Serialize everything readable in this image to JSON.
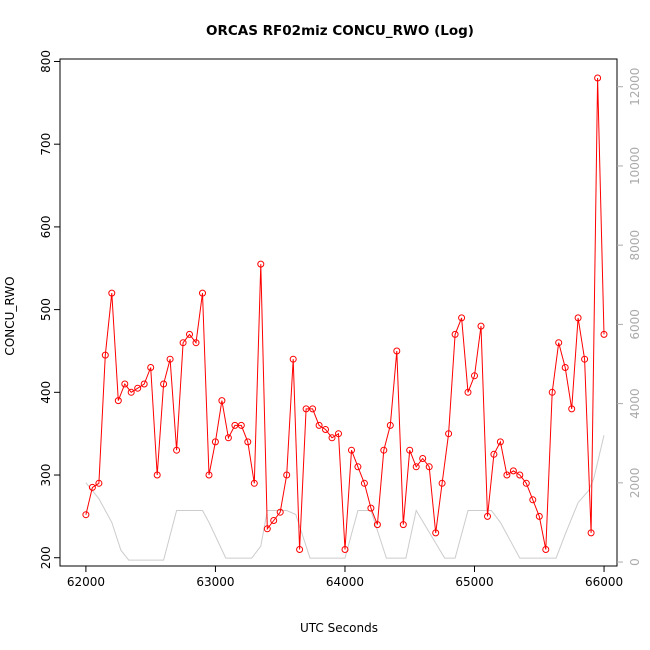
{
  "chart_data": {
    "type": "line",
    "title": "ORCAS RF02miz CONCU_RWO (Log)",
    "xlabel": "UTC Seconds",
    "ylabel": "CONCU_RWO",
    "xlim": [
      61800,
      66100
    ],
    "ylim": [
      190,
      803
    ],
    "y2lim": [
      -100,
      12700
    ],
    "xticks": [
      62000,
      63000,
      64000,
      65000,
      66000
    ],
    "yticks": [
      200,
      300,
      400,
      500,
      600,
      700,
      800
    ],
    "y2ticks": [
      0,
      2000,
      4000,
      6000,
      8000,
      10000,
      12000
    ],
    "grid": false,
    "series": [
      {
        "color": "#ff0000",
        "marker": "open-circle",
        "x": [
          62000,
          62050,
          62100,
          62150,
          62200,
          62250,
          62300,
          62350,
          62400,
          62450,
          62500,
          62550,
          62600,
          62650,
          62700,
          62750,
          62800,
          62850,
          62900,
          62950,
          63000,
          63050,
          63100,
          63150,
          63200,
          63250,
          63300,
          63350,
          63400,
          63450,
          63500,
          63550,
          63600,
          63650,
          63700,
          63750,
          63800,
          63850,
          63900,
          63950,
          64000,
          64050,
          64100,
          64150,
          64200,
          64250,
          64300,
          64350,
          64400,
          64450,
          64500,
          64550,
          64600,
          64650,
          64700,
          64750,
          64800,
          64850,
          64900,
          64950,
          65000,
          65050,
          65100,
          65150,
          65200,
          65250,
          65300,
          65350,
          65400,
          65450,
          65500,
          65550,
          65600,
          65650,
          65700,
          65750,
          65800,
          65850,
          65900,
          65950,
          66000
        ],
        "y": [
          252,
          285,
          290,
          445,
          520,
          390,
          410,
          400,
          405,
          410,
          430,
          300,
          410,
          440,
          330,
          460,
          470,
          460,
          520,
          300,
          340,
          390,
          345,
          360,
          360,
          340,
          290,
          555,
          235,
          245,
          255,
          300,
          440,
          210,
          380,
          380,
          360,
          355,
          345,
          350,
          210,
          330,
          310,
          290,
          260,
          240,
          330,
          360,
          450,
          240,
          330,
          310,
          320,
          310,
          230,
          290,
          350,
          470,
          490,
          400,
          420,
          480,
          250,
          325,
          340,
          300,
          305,
          300,
          290,
          270,
          250,
          210,
          400,
          460,
          430,
          380,
          490,
          440,
          230,
          780,
          470
        ]
      },
      {
        "color": "#cccccc",
        "marker": "none",
        "axis": "right",
        "x": [
          62000,
          62100,
          62200,
          62270,
          62330,
          62400,
          62530,
          62600,
          62700,
          62850,
          62900,
          62950,
          63080,
          63150,
          63280,
          63350,
          63400,
          63550,
          63620,
          63730,
          63800,
          63920,
          64000,
          64100,
          64200,
          64320,
          64400,
          64470,
          64550,
          64770,
          64850,
          64950,
          65130,
          65200,
          65350,
          65400,
          65550,
          65630,
          65700,
          65800,
          65880,
          65920,
          66000
        ],
        "y": [
          2000,
          1600,
          1000,
          300,
          50,
          50,
          50,
          50,
          1300,
          1300,
          1300,
          1000,
          100,
          100,
          100,
          400,
          1300,
          1300,
          1200,
          100,
          100,
          100,
          100,
          1300,
          1300,
          100,
          100,
          100,
          1300,
          100,
          100,
          1300,
          1300,
          1000,
          100,
          100,
          100,
          100,
          700,
          1500,
          1800,
          2100,
          3200
        ]
      }
    ]
  }
}
